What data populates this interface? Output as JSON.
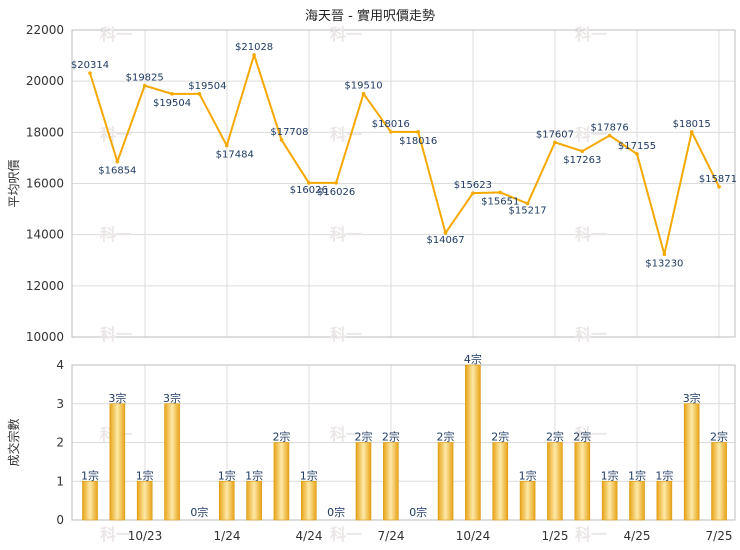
{
  "title": "海天晉 - 實用呎價走勢",
  "colors": {
    "line": "#f5a800",
    "bar_light": "#fde9a8",
    "bar_dark": "#e8a317",
    "grid": "#dcdcdc",
    "label": "#1f3b63",
    "axis_text": "#333333",
    "watermark": "#ece7e7"
  },
  "watermark": "科一",
  "chart_data": [
    {
      "type": "line",
      "ylabel": "平均呎價",
      "ylim": [
        10000,
        22000
      ],
      "yticks": [
        10000,
        12000,
        14000,
        16000,
        18000,
        20000,
        22000
      ],
      "points": [
        {
          "v": 20314,
          "label": "$20314"
        },
        {
          "v": 16854,
          "label": "$16854"
        },
        {
          "v": 19825,
          "label": "$19825"
        },
        {
          "v": 19504,
          "label": "$19504"
        },
        {
          "v": 19504,
          "label": "$19504"
        },
        {
          "v": 17484,
          "label": "$17484"
        },
        {
          "v": 21028,
          "label": "$21028"
        },
        {
          "v": 17708,
          "label": "$17708"
        },
        {
          "v": 16026,
          "label": "$16026"
        },
        {
          "v": 16026,
          "label": "$16026"
        },
        {
          "v": 19510,
          "label": "$19510"
        },
        {
          "v": 18016,
          "label": "$18016"
        },
        {
          "v": 18016,
          "label": "$18016"
        },
        {
          "v": 14067,
          "label": "$14067"
        },
        {
          "v": 15623,
          "label": "$15623"
        },
        {
          "v": 15651,
          "label": "$15651"
        },
        {
          "v": 15217,
          "label": "$15217"
        },
        {
          "v": 17607,
          "label": "$17607"
        },
        {
          "v": 17263,
          "label": "$17263"
        },
        {
          "v": 17876,
          "label": "$17876"
        },
        {
          "v": 17155,
          "label": "$17155"
        },
        {
          "v": 13230,
          "label": "$13230"
        },
        {
          "v": 18015,
          "label": "$18015"
        },
        {
          "v": 15871,
          "label": "$15871"
        }
      ]
    },
    {
      "type": "bar",
      "ylabel": "成交宗數",
      "ylim": [
        0,
        4
      ],
      "yticks": [
        0,
        1,
        2,
        3,
        4
      ],
      "xticks": [
        "10/23",
        "1/24",
        "4/24",
        "7/24",
        "10/24",
        "1/25",
        "4/25",
        "7/25"
      ],
      "values": [
        1,
        3,
        1,
        3,
        0,
        1,
        1,
        2,
        1,
        0,
        2,
        2,
        0,
        2,
        4,
        2,
        1,
        2,
        2,
        1,
        1,
        1,
        3,
        2
      ],
      "labels": [
        "1宗",
        "3宗",
        "1宗",
        "3宗",
        "0宗",
        "1宗",
        "1宗",
        "2宗",
        "1宗",
        "0宗",
        "2宗",
        "2宗",
        "0宗",
        "2宗",
        "4宗",
        "2宗",
        "1宗",
        "2宗",
        "2宗",
        "1宗",
        "1宗",
        "1宗",
        "3宗",
        "2宗"
      ]
    }
  ]
}
